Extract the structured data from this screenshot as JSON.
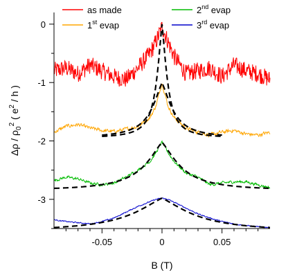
{
  "chart_data": {
    "type": "line",
    "xlabel": "B (T)",
    "ylabel_parts": {
      "base": "Δρ / ρ",
      "sub": "0",
      "sup": "2",
      "open": " ( e",
      "sup2": "2",
      "close": " / h )"
    },
    "xlim": [
      -0.09,
      0.09
    ],
    "ylim": [
      -3.5,
      0.2
    ],
    "xticks": [
      -0.05,
      0,
      0.05
    ],
    "xtick_labels": [
      "-0.05",
      "0",
      "0.05"
    ],
    "yticks": [
      0,
      -1,
      -2,
      -3
    ],
    "ytick_labels": [
      "0",
      "-1",
      "-2",
      "-3"
    ],
    "grid": false,
    "legend": [
      {
        "label": "as made",
        "color": "#ff0000"
      },
      {
        "label_prefix": "1",
        "label_sup": "st",
        "label_suffix": " evap",
        "color": "#ffa500"
      },
      {
        "label_prefix": "2",
        "label_sup": "nd",
        "label_suffix": " evap",
        "color": "#00bb00"
      },
      {
        "label_prefix": "3",
        "label_sup": "rd",
        "label_suffix": " evap",
        "color": "#0000cc"
      }
    ],
    "series": [
      {
        "name": "as made",
        "color": "#ff0000",
        "x": [
          -0.09,
          -0.08,
          -0.07,
          -0.06,
          -0.05,
          -0.04,
          -0.03,
          -0.02,
          -0.01,
          -0.005,
          0,
          0.005,
          0.01,
          0.02,
          0.03,
          0.04,
          0.05,
          0.06,
          0.07,
          0.08,
          0.09
        ],
        "y": [
          -0.8,
          -0.75,
          -0.85,
          -0.7,
          -0.8,
          -0.9,
          -0.95,
          -0.75,
          -0.5,
          -0.3,
          -0.05,
          -0.3,
          -0.55,
          -0.85,
          -0.8,
          -0.75,
          -0.9,
          -0.7,
          -0.8,
          -0.85,
          -0.95
        ],
        "noise": 0.15
      },
      {
        "name": "1st evap",
        "color": "#ffa500",
        "x": [
          -0.09,
          -0.08,
          -0.07,
          -0.06,
          -0.05,
          -0.04,
          -0.03,
          -0.02,
          -0.01,
          -0.005,
          0,
          0.005,
          0.01,
          0.02,
          0.03,
          0.04,
          0.05,
          0.06,
          0.07,
          0.08,
          0.09
        ],
        "y": [
          -1.85,
          -1.75,
          -1.72,
          -1.78,
          -1.82,
          -1.84,
          -1.8,
          -1.75,
          -1.6,
          -1.4,
          -1.0,
          -1.4,
          -1.6,
          -1.78,
          -1.85,
          -1.9,
          -1.85,
          -1.82,
          -1.88,
          -1.9,
          -1.85
        ],
        "noise": 0.04
      },
      {
        "name": "2nd evap",
        "color": "#00bb00",
        "x": [
          -0.09,
          -0.08,
          -0.07,
          -0.06,
          -0.05,
          -0.04,
          -0.03,
          -0.02,
          -0.01,
          -0.005,
          0,
          0.005,
          0.01,
          0.02,
          0.03,
          0.04,
          0.05,
          0.06,
          0.07,
          0.08,
          0.09
        ],
        "y": [
          -2.68,
          -2.62,
          -2.65,
          -2.72,
          -2.75,
          -2.72,
          -2.62,
          -2.5,
          -2.35,
          -2.2,
          -2.02,
          -2.2,
          -2.35,
          -2.55,
          -2.62,
          -2.75,
          -2.72,
          -2.7,
          -2.7,
          -2.75,
          -2.8
        ],
        "noise": 0.03
      },
      {
        "name": "3rd evap",
        "color": "#0000cc",
        "x": [
          -0.09,
          -0.08,
          -0.07,
          -0.06,
          -0.05,
          -0.04,
          -0.03,
          -0.02,
          -0.01,
          -0.005,
          0,
          0.005,
          0.01,
          0.02,
          0.03,
          0.04,
          0.05,
          0.06,
          0.07,
          0.08,
          0.09
        ],
        "y": [
          -3.35,
          -3.38,
          -3.4,
          -3.42,
          -3.38,
          -3.32,
          -3.22,
          -3.12,
          -3.04,
          -3.0,
          -2.98,
          -3.0,
          -3.05,
          -3.15,
          -3.25,
          -3.32,
          -3.38,
          -3.42,
          -3.45,
          -3.47,
          -3.48
        ],
        "noise": 0.012
      }
    ],
    "fits": [
      {
        "baseline": -1.95,
        "peak": 0.0,
        "width": 0.006,
        "xrange": [
          -0.05,
          0.05
        ]
      },
      {
        "baseline": -1.95,
        "peak": -1.0,
        "width": 0.012,
        "xrange": [
          -0.05,
          0.05
        ]
      },
      {
        "baseline": -2.85,
        "peak": -2.02,
        "width": 0.02,
        "xrange": [
          -0.09,
          0.09
        ]
      },
      {
        "baseline": -3.55,
        "peak": -2.98,
        "width": 0.035,
        "xrange": [
          -0.09,
          0.09
        ]
      }
    ]
  }
}
